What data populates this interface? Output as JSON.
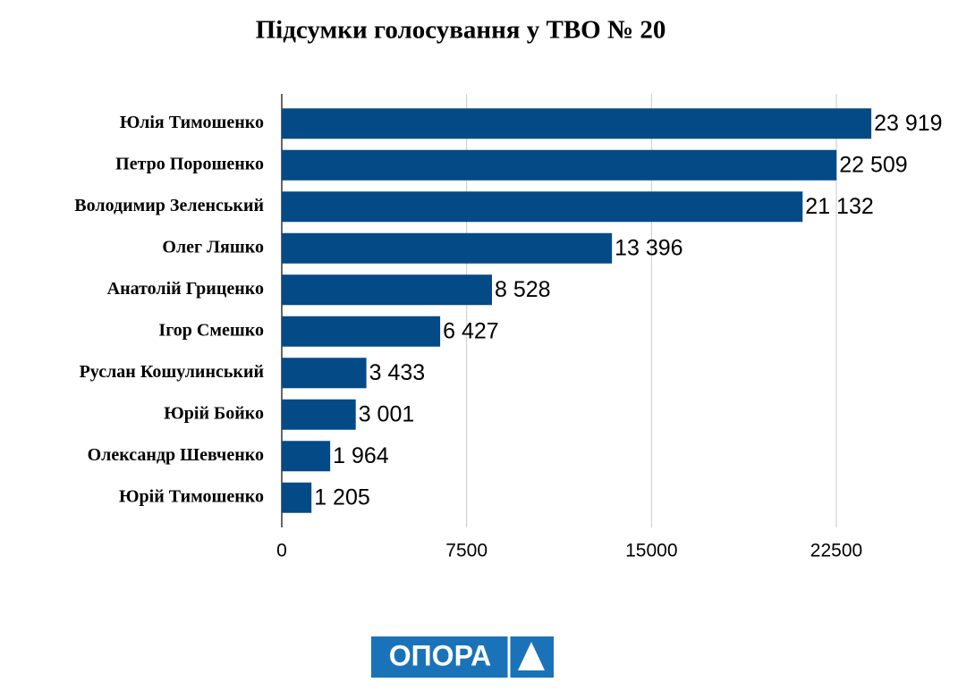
{
  "chart_data": {
    "type": "hbar",
    "title": "Підсумки голосування у ТВО № 20",
    "categories": [
      "Юлія Тимошенко",
      "Петро Порошенко",
      "Володимир Зеленський",
      "Олег Ляшко",
      "Анатолій Гриценко",
      "Ігор Смешко",
      "Руслан Кошулинський",
      "Юрій Бойко",
      "Олександр Шевченко",
      "Юрій Тимошенко"
    ],
    "values": [
      23919,
      22509,
      21132,
      13396,
      8528,
      6427,
      3433,
      3001,
      1964,
      1205
    ],
    "value_labels": [
      "23 919",
      "22 509",
      "21 132",
      "13 396",
      "8 528",
      "6 427",
      "3 433",
      "3 001",
      "1 964",
      "1 205"
    ],
    "color": "#034a87",
    "xlim": [
      0,
      22500
    ],
    "xticks": [
      0,
      7500,
      15000,
      22500
    ],
    "grid": true
  },
  "logo": {
    "text": "ОПОРА"
  }
}
